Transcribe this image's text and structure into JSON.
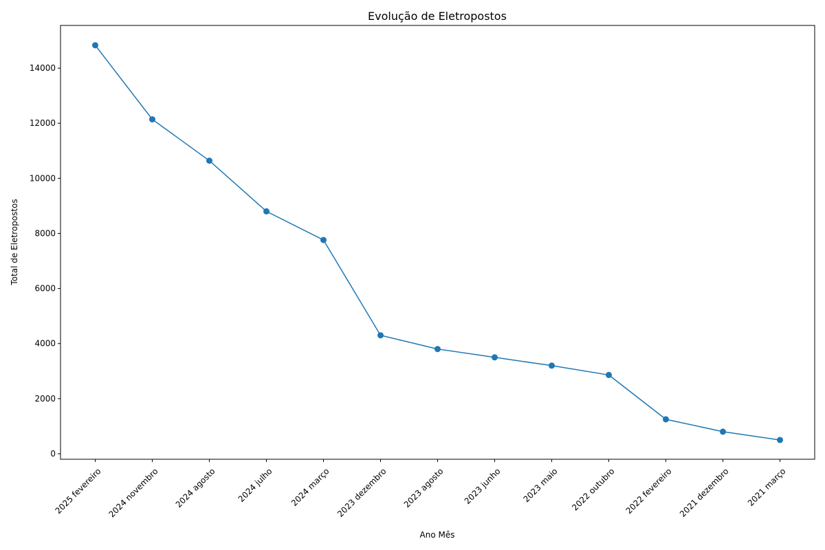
{
  "chart_data": {
    "type": "line",
    "title": "Evolução de Eletropostos",
    "xlabel": "Ano Mês",
    "ylabel": "Total de Eletropostos",
    "categories": [
      "2025 fevereiro",
      "2024 novembro",
      "2024 agosto",
      "2024 julho",
      "2024 março",
      "2023 dezembro",
      "2023 agosto",
      "2023 junho",
      "2023 maio",
      "2022 outubro",
      "2022 fevereiro",
      "2021 dezembro",
      "2021 março"
    ],
    "series": [
      {
        "name": "Total de Eletropostos",
        "values": [
          14830,
          12140,
          10640,
          8800,
          7760,
          4300,
          3800,
          3500,
          3200,
          2860,
          1250,
          800,
          500
        ]
      }
    ],
    "ylim": [
      -200,
      15550
    ],
    "yticks": [
      0,
      2000,
      4000,
      6000,
      8000,
      10000,
      12000,
      14000
    ],
    "grid": false,
    "color": "#1f77b4"
  }
}
